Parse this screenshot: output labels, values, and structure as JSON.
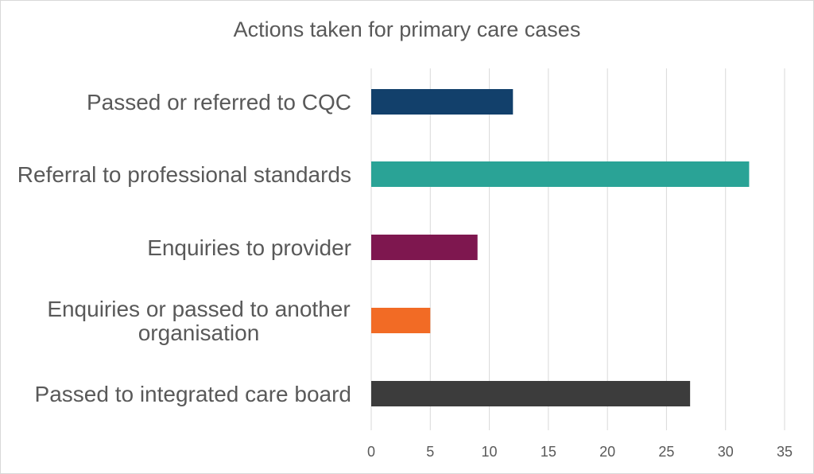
{
  "chart_data": {
    "type": "bar",
    "orientation": "horizontal",
    "title": "Actions taken for primary care cases",
    "categories": [
      [
        "Passed or referred to CQC"
      ],
      [
        "Referral to professional standards"
      ],
      [
        "Enquiries to provider"
      ],
      [
        "Enquiries or passed to another",
        "organisation"
      ],
      [
        "Passed to integrated care board"
      ]
    ],
    "values": [
      12,
      32,
      9,
      5,
      27
    ],
    "colors": [
      "#12406b",
      "#2aa396",
      "#7e174f",
      "#f26b25",
      "#3c3c3c"
    ],
    "xlabel": "",
    "ylabel": "",
    "xlim": [
      0,
      35
    ],
    "xticks": [
      "0",
      "5",
      "10",
      "15",
      "20",
      "25",
      "30",
      "35"
    ],
    "grid": "vertical",
    "legend": "none"
  }
}
